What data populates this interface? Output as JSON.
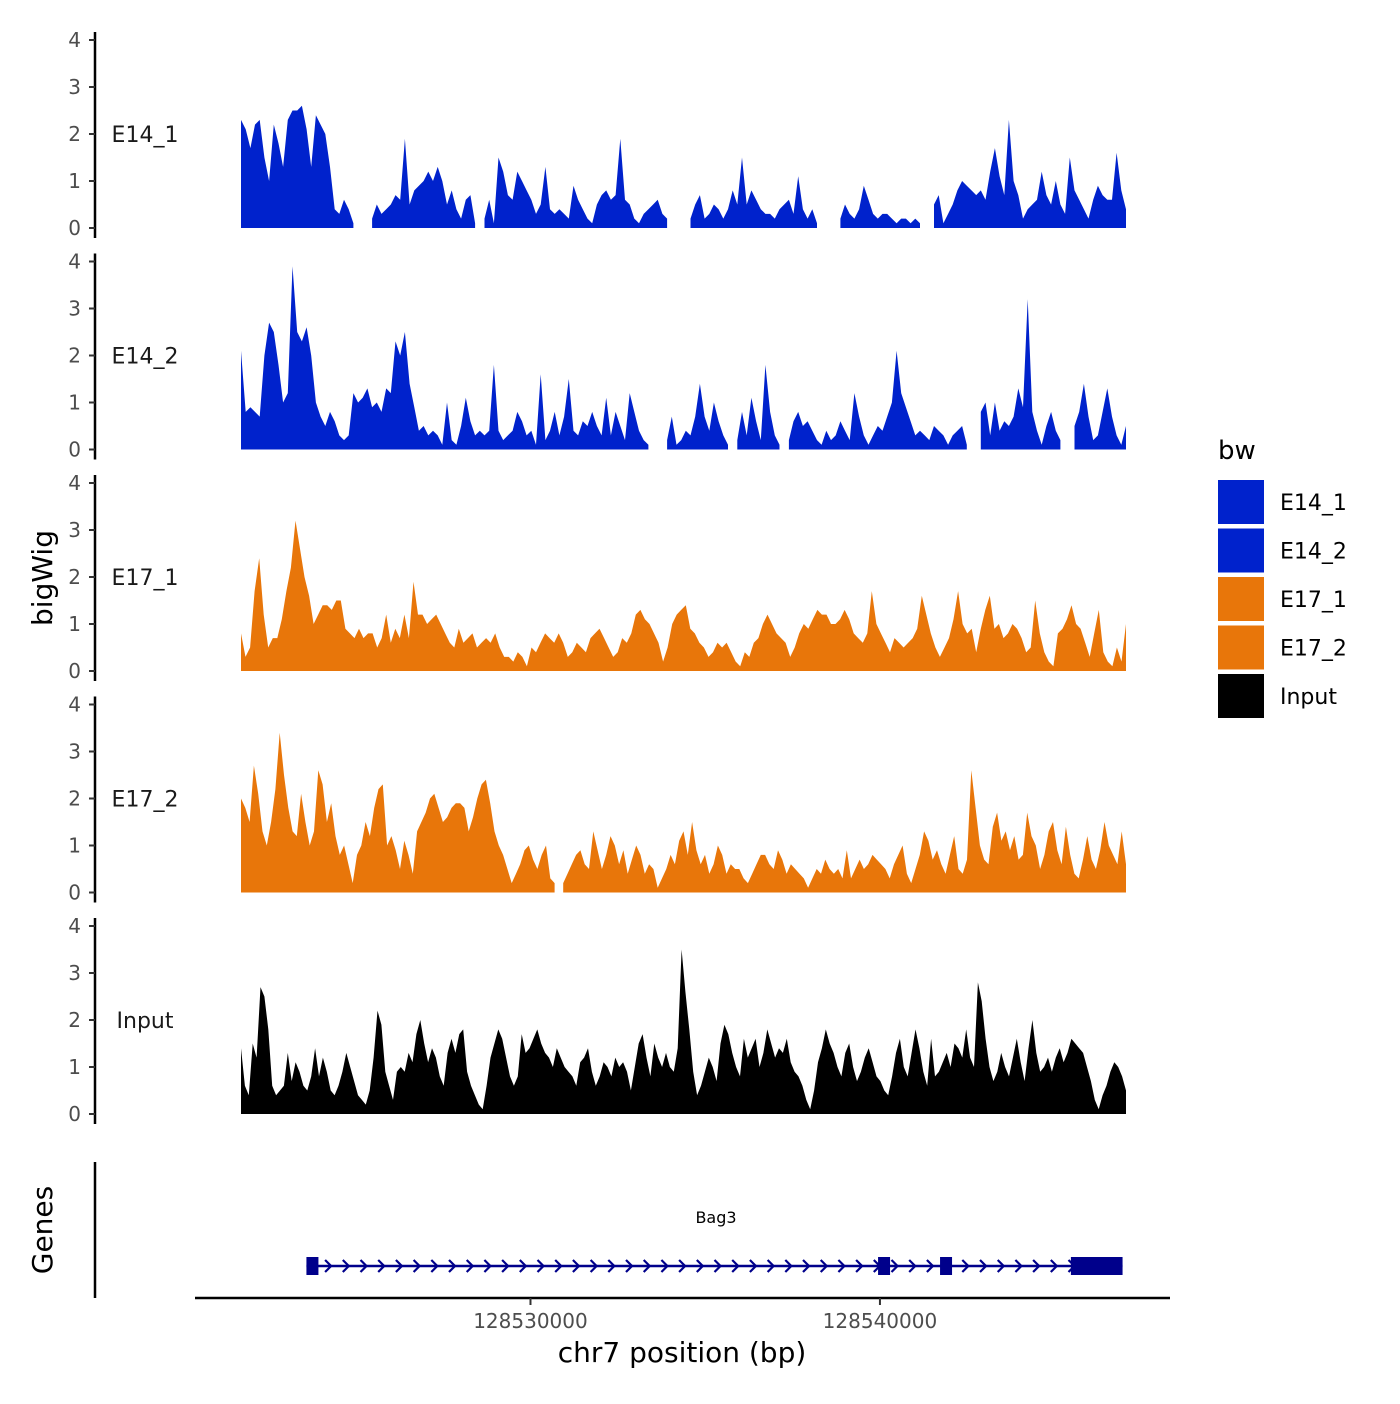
{
  "chart_data": {
    "type": "area",
    "ylabel": "bigWig",
    "xlabel": "chr7 position (bp)",
    "genes_label": "Genes",
    "x_range": [
      128521500,
      128547200
    ],
    "x_axis_limits": [
      128520400,
      128548300
    ],
    "x_ticks": [
      {
        "value": 128530000,
        "label": "128530000"
      },
      {
        "value": 128540000,
        "label": "128540000"
      }
    ],
    "y_range": [
      0,
      4
    ],
    "y_ticks": [
      0,
      1,
      2,
      3,
      4
    ],
    "legend": {
      "title": "bw",
      "entries": [
        {
          "label": "E14_1",
          "color": "#0022CC"
        },
        {
          "label": "E14_2",
          "color": "#0022CC"
        },
        {
          "label": "E17_1",
          "color": "#E8760A"
        },
        {
          "label": "E17_2",
          "color": "#E8760A"
        },
        {
          "label": "Input",
          "color": "#000000"
        }
      ]
    },
    "series": [
      {
        "name": "E14_1",
        "color": "#0022CC",
        "values": [
          2.3,
          2.1,
          1.7,
          2.2,
          2.3,
          1.5,
          1.0,
          2.2,
          1.8,
          1.3,
          2.3,
          2.5,
          2.5,
          2.6,
          2.1,
          1.3,
          2.4,
          2.2,
          2.0,
          1.3,
          0.4,
          0.3,
          0.6,
          0.4,
          0.1,
          null,
          null,
          null,
          0.2,
          0.5,
          0.3,
          0.4,
          0.5,
          0.7,
          0.6,
          1.9,
          0.5,
          0.8,
          0.9,
          1.0,
          1.2,
          1.0,
          1.3,
          1.0,
          0.5,
          0.8,
          0.4,
          0.2,
          0.6,
          0.7,
          0.1,
          null,
          0.2,
          0.6,
          0.1,
          1.5,
          1.2,
          0.7,
          0.6,
          1.2,
          1.0,
          0.8,
          0.6,
          0.3,
          0.5,
          1.3,
          0.4,
          0.3,
          0.4,
          0.3,
          0.2,
          0.9,
          0.6,
          0.4,
          0.2,
          0.1,
          0.5,
          0.7,
          0.8,
          0.6,
          0.7,
          1.9,
          0.6,
          0.5,
          0.2,
          0.1,
          0.3,
          0.4,
          0.5,
          0.6,
          0.3,
          0.2,
          null,
          null,
          null,
          null,
          0.2,
          0.5,
          0.7,
          0.2,
          0.3,
          0.5,
          0.4,
          0.2,
          0.4,
          0.8,
          0.5,
          1.5,
          0.5,
          0.8,
          0.6,
          0.4,
          0.3,
          0.3,
          0.2,
          0.4,
          0.5,
          0.6,
          0.3,
          1.1,
          0.4,
          0.2,
          0.4,
          0.1,
          null,
          null,
          null,
          null,
          0.2,
          0.5,
          0.3,
          0.2,
          0.4,
          0.9,
          0.6,
          0.3,
          0.2,
          0.3,
          0.3,
          0.2,
          0.1,
          0.2,
          0.2,
          0.1,
          0.2,
          0.1,
          null,
          null,
          0.5,
          0.7,
          0.1,
          0.3,
          0.5,
          0.8,
          1.0,
          0.9,
          0.8,
          0.7,
          0.8,
          0.6,
          1.2,
          1.7,
          1.1,
          0.7,
          2.3,
          1.0,
          0.7,
          0.2,
          0.4,
          0.5,
          0.6,
          1.2,
          0.7,
          0.5,
          1.0,
          0.5,
          0.3,
          1.5,
          0.8,
          0.6,
          0.4,
          0.2,
          0.6,
          0.9,
          0.7,
          0.6,
          0.6,
          1.6,
          0.8,
          0.4
        ]
      },
      {
        "name": "E14_2",
        "color": "#0022CC",
        "values": [
          2.1,
          0.8,
          0.9,
          0.8,
          0.7,
          2.0,
          2.7,
          2.5,
          1.8,
          1.0,
          1.2,
          3.9,
          2.5,
          2.3,
          2.6,
          2.0,
          1.0,
          0.7,
          0.5,
          0.8,
          0.6,
          0.3,
          0.2,
          0.3,
          1.2,
          1.0,
          1.1,
          1.3,
          0.9,
          1.0,
          0.8,
          1.3,
          1.2,
          2.3,
          2.0,
          2.5,
          1.4,
          0.9,
          0.4,
          0.5,
          0.3,
          0.4,
          0.3,
          0.1,
          1.0,
          0.2,
          0.1,
          0.5,
          1.1,
          0.6,
          0.3,
          0.4,
          0.3,
          0.4,
          1.8,
          0.4,
          0.2,
          0.3,
          0.4,
          0.8,
          0.6,
          0.3,
          0.4,
          0.1,
          1.6,
          0.2,
          0.4,
          0.8,
          0.3,
          0.7,
          1.5,
          0.4,
          0.3,
          0.6,
          0.5,
          0.8,
          0.5,
          0.3,
          1.1,
          0.3,
          0.8,
          0.5,
          0.2,
          1.2,
          0.8,
          0.4,
          0.2,
          0.1,
          null,
          null,
          null,
          0.2,
          0.7,
          0.1,
          0.2,
          0.4,
          0.3,
          0.7,
          1.4,
          0.7,
          0.4,
          1.0,
          0.6,
          0.3,
          0.1,
          null,
          0.2,
          0.8,
          0.3,
          1.1,
          0.6,
          0.2,
          1.8,
          0.8,
          0.3,
          0.1,
          null,
          0.2,
          0.6,
          0.8,
          0.5,
          0.6,
          0.4,
          0.2,
          0.1,
          0.4,
          0.2,
          0.3,
          0.6,
          0.4,
          0.2,
          1.2,
          0.7,
          0.3,
          0.1,
          0.3,
          0.5,
          0.4,
          0.7,
          1.0,
          2.1,
          1.2,
          0.9,
          0.6,
          0.3,
          0.4,
          0.3,
          0.2,
          0.5,
          0.4,
          0.3,
          0.1,
          0.3,
          0.4,
          0.5,
          0.1,
          null,
          null,
          0.8,
          1.0,
          0.3,
          1.0,
          0.4,
          0.6,
          0.5,
          0.7,
          1.3,
          0.9,
          3.2,
          0.8,
          0.4,
          0.1,
          0.5,
          0.8,
          0.4,
          0.2,
          null,
          null,
          0.5,
          0.8,
          1.4,
          0.7,
          0.2,
          0.3,
          0.8,
          1.3,
          0.7,
          0.3,
          0.1,
          0.5
        ]
      },
      {
        "name": "E17_1",
        "color": "#E8760A",
        "values": [
          0.8,
          0.3,
          0.5,
          1.7,
          2.4,
          1.2,
          0.5,
          0.7,
          0.7,
          1.1,
          1.7,
          2.2,
          3.2,
          2.6,
          2.0,
          1.6,
          1.0,
          1.2,
          1.4,
          1.4,
          1.3,
          1.5,
          1.5,
          0.9,
          0.8,
          0.7,
          0.9,
          0.7,
          0.8,
          0.8,
          0.5,
          0.7,
          1.2,
          0.6,
          0.9,
          0.7,
          1.2,
          0.7,
          1.9,
          1.2,
          1.2,
          1.0,
          1.1,
          1.2,
          1.0,
          0.8,
          0.6,
          0.5,
          0.9,
          0.6,
          0.7,
          0.8,
          0.5,
          0.6,
          0.7,
          0.6,
          0.8,
          0.5,
          0.3,
          0.3,
          0.2,
          0.4,
          0.3,
          0.1,
          0.5,
          0.4,
          0.6,
          0.8,
          0.7,
          0.6,
          0.8,
          0.6,
          0.3,
          0.4,
          0.6,
          0.5,
          0.4,
          0.7,
          0.8,
          0.9,
          0.7,
          0.5,
          0.3,
          0.4,
          0.7,
          0.6,
          0.8,
          1.2,
          1.3,
          1.1,
          1.0,
          0.8,
          0.6,
          0.2,
          0.5,
          1.0,
          1.2,
          1.3,
          1.4,
          0.9,
          0.8,
          0.6,
          0.5,
          0.3,
          0.4,
          0.6,
          0.5,
          0.6,
          0.4,
          0.2,
          0.1,
          0.4,
          0.3,
          0.6,
          0.7,
          1.0,
          1.2,
          1.0,
          0.8,
          0.7,
          0.6,
          0.3,
          0.5,
          0.8,
          1.0,
          0.9,
          1.1,
          1.3,
          1.2,
          1.2,
          1.0,
          1.0,
          1.1,
          1.3,
          1.1,
          0.8,
          0.7,
          0.6,
          0.8,
          1.7,
          1.0,
          0.8,
          0.6,
          0.4,
          0.7,
          0.6,
          0.5,
          0.6,
          0.7,
          0.9,
          1.6,
          1.2,
          0.8,
          0.5,
          0.3,
          0.5,
          0.7,
          1.1,
          1.7,
          1.0,
          0.8,
          0.9,
          0.4,
          0.9,
          1.3,
          1.6,
          0.9,
          1.0,
          0.7,
          0.8,
          1.0,
          0.9,
          0.7,
          0.4,
          0.5,
          1.5,
          0.8,
          0.4,
          0.2,
          0.1,
          0.8,
          0.9,
          1.1,
          1.4,
          1.0,
          0.9,
          0.6,
          0.3,
          0.8,
          1.3,
          0.4,
          0.2,
          0.1,
          0.5,
          0.2,
          1.0
        ]
      },
      {
        "name": "E17_2",
        "color": "#E8760A",
        "values": [
          2.0,
          1.8,
          1.5,
          2.7,
          2.1,
          1.3,
          1.0,
          1.5,
          2.2,
          3.4,
          2.5,
          1.8,
          1.3,
          1.2,
          2.1,
          1.5,
          1.0,
          1.3,
          2.6,
          2.3,
          1.5,
          1.9,
          1.2,
          0.8,
          1.0,
          0.6,
          0.2,
          0.8,
          1.0,
          1.5,
          1.2,
          1.8,
          2.2,
          2.3,
          1.0,
          1.2,
          0.9,
          0.5,
          1.1,
          0.8,
          0.4,
          1.3,
          1.5,
          1.7,
          2.0,
          2.1,
          1.8,
          1.5,
          1.6,
          1.8,
          1.9,
          1.9,
          1.8,
          1.3,
          1.6,
          2.0,
          2.3,
          2.4,
          1.9,
          1.3,
          1.0,
          0.8,
          0.5,
          0.2,
          0.4,
          0.6,
          0.9,
          1.0,
          0.7,
          0.5,
          0.8,
          1.0,
          0.3,
          0.2,
          null,
          0.2,
          0.4,
          0.6,
          0.8,
          0.9,
          0.6,
          0.5,
          1.3,
          0.9,
          0.5,
          0.8,
          1.2,
          1.0,
          0.6,
          0.9,
          0.4,
          0.7,
          1.0,
          0.8,
          0.4,
          0.6,
          0.5,
          0.1,
          0.3,
          0.5,
          0.8,
          0.6,
          1.1,
          1.3,
          0.8,
          1.5,
          0.9,
          0.6,
          0.8,
          0.4,
          0.6,
          1.0,
          0.8,
          0.4,
          0.6,
          0.5,
          0.5,
          0.3,
          0.2,
          0.4,
          0.6,
          0.8,
          0.8,
          0.6,
          0.5,
          0.9,
          0.7,
          0.4,
          0.6,
          0.5,
          0.4,
          0.3,
          0.1,
          0.3,
          0.5,
          0.4,
          0.7,
          0.5,
          0.4,
          0.5,
          0.3,
          0.9,
          0.3,
          0.5,
          0.7,
          0.5,
          0.6,
          0.8,
          0.7,
          0.6,
          0.5,
          0.3,
          0.6,
          0.8,
          1.0,
          0.4,
          0.2,
          0.5,
          0.8,
          1.3,
          1.1,
          0.7,
          0.9,
          0.6,
          0.4,
          0.8,
          1.2,
          0.5,
          0.4,
          0.7,
          2.6,
          1.8,
          1.0,
          0.7,
          0.6,
          1.4,
          1.7,
          1.1,
          1.3,
          0.9,
          1.2,
          0.7,
          0.8,
          1.7,
          1.2,
          1.0,
          0.5,
          0.8,
          1.3,
          1.5,
          0.9,
          0.6,
          1.4,
          0.8,
          0.4,
          0.3,
          0.7,
          1.2,
          0.7,
          0.5,
          0.9,
          1.5,
          1.0,
          0.8,
          0.6,
          1.3,
          0.6
        ]
      },
      {
        "name": "Input",
        "color": "#000000",
        "values": [
          1.4,
          0.6,
          0.4,
          1.5,
          1.2,
          2.7,
          2.5,
          1.8,
          0.6,
          0.4,
          0.5,
          0.6,
          1.3,
          0.7,
          1.1,
          0.9,
          0.6,
          0.5,
          0.8,
          1.4,
          0.8,
          1.2,
          0.9,
          0.5,
          0.4,
          0.6,
          0.9,
          1.3,
          1.0,
          0.7,
          0.4,
          0.3,
          0.2,
          0.5,
          1.2,
          2.2,
          1.9,
          0.9,
          0.6,
          0.3,
          0.9,
          1.0,
          0.9,
          1.3,
          1.1,
          1.7,
          2.0,
          1.5,
          1.1,
          1.4,
          1.2,
          0.8,
          0.6,
          1.3,
          1.6,
          1.3,
          1.7,
          1.8,
          0.9,
          0.6,
          0.4,
          0.2,
          0.1,
          0.6,
          1.2,
          1.5,
          1.8,
          1.6,
          1.2,
          0.8,
          0.6,
          0.8,
          1.7,
          1.3,
          1.4,
          1.6,
          1.8,
          1.5,
          1.3,
          1.2,
          1.0,
          1.4,
          1.2,
          1.0,
          0.9,
          0.8,
          0.6,
          1.1,
          1.2,
          1.4,
          0.9,
          0.6,
          0.8,
          1.1,
          1.0,
          0.8,
          1.2,
          1.0,
          1.1,
          0.9,
          0.5,
          1.0,
          1.5,
          1.7,
          1.2,
          0.8,
          1.5,
          1.2,
          1.0,
          1.3,
          1.0,
          0.9,
          1.4,
          3.5,
          2.6,
          1.8,
          0.9,
          0.4,
          0.6,
          0.9,
          1.2,
          1.0,
          0.7,
          1.5,
          1.9,
          1.7,
          1.3,
          1.0,
          0.8,
          1.6,
          1.2,
          1.4,
          1.6,
          1.0,
          1.3,
          1.8,
          1.5,
          1.2,
          1.4,
          1.3,
          1.6,
          1.1,
          0.9,
          0.8,
          0.6,
          0.3,
          0.1,
          0.5,
          1.1,
          1.4,
          1.8,
          1.5,
          1.3,
          1.0,
          0.8,
          1.3,
          1.5,
          1.0,
          0.7,
          0.9,
          1.2,
          1.4,
          1.1,
          0.8,
          0.7,
          0.5,
          0.4,
          0.8,
          1.3,
          1.6,
          1.0,
          0.8,
          1.3,
          1.8,
          1.4,
          0.9,
          0.6,
          1.6,
          0.8,
          0.9,
          1.1,
          1.3,
          1.0,
          1.5,
          1.4,
          1.2,
          1.8,
          1.2,
          1.0,
          2.8,
          2.4,
          1.6,
          1.0,
          0.7,
          0.9,
          1.3,
          1.0,
          0.8,
          1.2,
          1.6,
          1.1,
          0.7,
          1.4,
          2.0,
          1.3,
          0.9,
          1.0,
          1.2,
          0.9,
          1.2,
          1.4,
          1.1,
          1.3,
          1.6,
          1.5,
          1.4,
          1.3,
          1.0,
          0.7,
          0.3,
          0.1,
          0.4,
          0.6,
          0.9,
          1.1,
          1.0,
          0.8,
          0.5
        ]
      }
    ],
    "gene": {
      "name": "Bag3",
      "color": "#00008B",
      "start": 128523400,
      "end": 128547100,
      "strand": "+",
      "exons": [
        [
          128523400,
          128523700
        ],
        [
          128540000,
          128540200
        ],
        [
          128541800,
          128542100
        ],
        [
          128545600,
          128547100
        ]
      ]
    }
  }
}
